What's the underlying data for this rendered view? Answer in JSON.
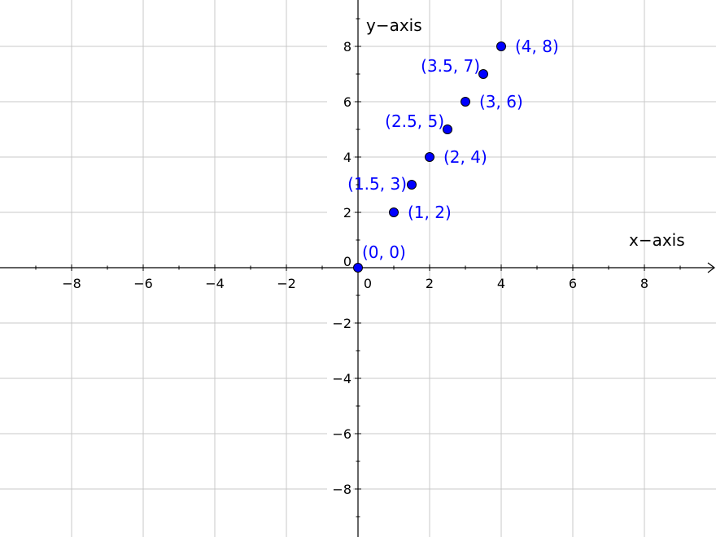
{
  "chart_data": {
    "type": "scatter",
    "xlabel": "x−axis",
    "ylabel": "y−axis",
    "xlim": [
      -10,
      10
    ],
    "ylim": [
      -9.7,
      9.7
    ],
    "grid": true,
    "x_ticks": [
      -8,
      -6,
      -4,
      -2,
      0,
      2,
      4,
      6,
      8
    ],
    "y_ticks": [
      -8,
      -6,
      -4,
      -2,
      0,
      2,
      4,
      6,
      8
    ],
    "x_tick_labels": [
      "−8",
      "−6",
      "−4",
      "−2",
      "0",
      "2",
      "4",
      "6",
      "8"
    ],
    "y_tick_labels": [
      "−8",
      "−6",
      "−4",
      "−2",
      "0",
      "2",
      "4",
      "6",
      "8"
    ],
    "point_color": "#0000ff",
    "label_color": "#0000ff",
    "points": [
      {
        "x": 0,
        "y": 0,
        "label": "(0, 0)",
        "label_pos": "above-right"
      },
      {
        "x": 1,
        "y": 2,
        "label": "(1, 2)",
        "label_pos": "right"
      },
      {
        "x": 1.5,
        "y": 3,
        "label": "(1.5, 3)",
        "label_pos": "left"
      },
      {
        "x": 2,
        "y": 4,
        "label": "(2, 4)",
        "label_pos": "right"
      },
      {
        "x": 2.5,
        "y": 5,
        "label": "(2.5, 5)",
        "label_pos": "above-left"
      },
      {
        "x": 3,
        "y": 6,
        "label": "(3, 6)",
        "label_pos": "right"
      },
      {
        "x": 3.5,
        "y": 7,
        "label": "(3.5, 7)",
        "label_pos": "above-left"
      },
      {
        "x": 4,
        "y": 8,
        "label": "(4, 8)",
        "label_pos": "right"
      }
    ]
  }
}
